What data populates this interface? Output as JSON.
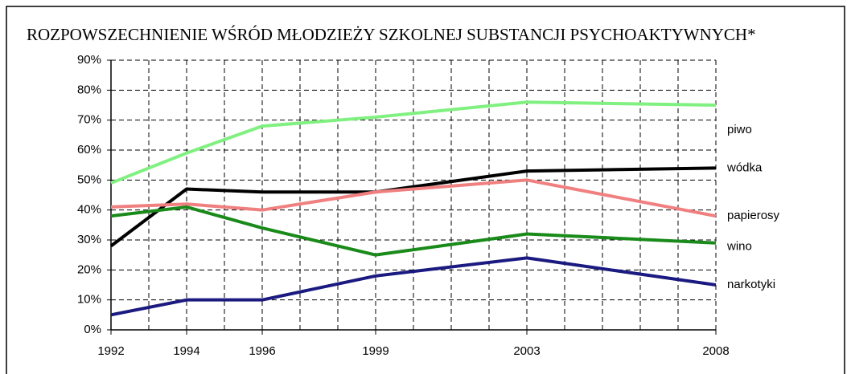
{
  "chart_data": {
    "type": "line",
    "title": "ROZPOWSZECHNIENIE WŚRÓD MŁODZIEŻY SZKOLNEJ SUBSTANCJI PSYCHOAKTYWNYCH*",
    "x": [
      1992,
      1994,
      1996,
      1999,
      2003,
      2008
    ],
    "xlim": [
      1992,
      2008
    ],
    "xticks": [
      1992,
      1994,
      1996,
      1999,
      2003,
      2008
    ],
    "ylim": [
      0,
      90
    ],
    "yticks": [
      {
        "value": 0,
        "label": "0%"
      },
      {
        "value": 10,
        "label": "10%"
      },
      {
        "value": 20,
        "label": "20%"
      },
      {
        "value": 30,
        "label": "30%"
      },
      {
        "value": 40,
        "label": "40%"
      },
      {
        "value": 50,
        "label": "50%"
      },
      {
        "value": 60,
        "label": "60%"
      },
      {
        "value": 70,
        "label": "70%"
      },
      {
        "value": 80,
        "label": "80%"
      },
      {
        "value": 90,
        "label": "90%"
      }
    ],
    "grid": true,
    "series": [
      {
        "name": "piwo",
        "color": "#80f080",
        "values": [
          49,
          59,
          68,
          71,
          76,
          75
        ]
      },
      {
        "name": "wódka",
        "color": "#000000",
        "values": [
          28,
          47,
          46,
          46,
          53,
          54
        ]
      },
      {
        "name": "papierosy",
        "color": "#f08080",
        "values": [
          41,
          42,
          40,
          46,
          50,
          38
        ]
      },
      {
        "name": "wino",
        "color": "#1a8a1a",
        "values": [
          38,
          41,
          34,
          25,
          32,
          29
        ]
      },
      {
        "name": "narkotyki",
        "color": "#1a1a80",
        "values": [
          5,
          10,
          10,
          18,
          24,
          15
        ]
      }
    ]
  }
}
